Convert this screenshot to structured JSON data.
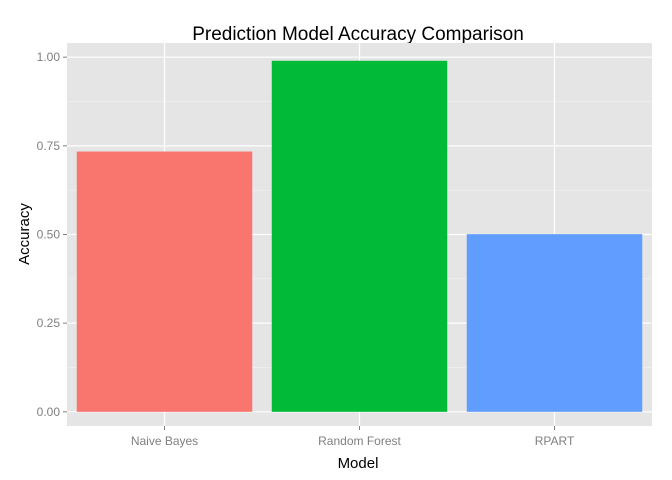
{
  "chart_data": {
    "type": "bar",
    "title": "Prediction Model Accuracy Comparison",
    "xlabel": "Model",
    "ylabel": "Accuracy",
    "categories": [
      "Naive Bayes",
      "Random Forest",
      "RPART"
    ],
    "values": [
      0.734,
      0.99,
      0.501
    ],
    "colors": [
      "#F8766D",
      "#00BA38",
      "#619CFF"
    ],
    "ylim": [
      -0.04,
      1.04
    ],
    "yticks": [
      0,
      0.25,
      0.5,
      0.75,
      1.0
    ],
    "ytick_labels": [
      "0.00",
      "0.25",
      "0.50",
      "0.75",
      "1.00"
    ],
    "grid": true,
    "panel_background": "#E5E5E5",
    "grid_color": "#FFFFFF",
    "legend": "none"
  }
}
